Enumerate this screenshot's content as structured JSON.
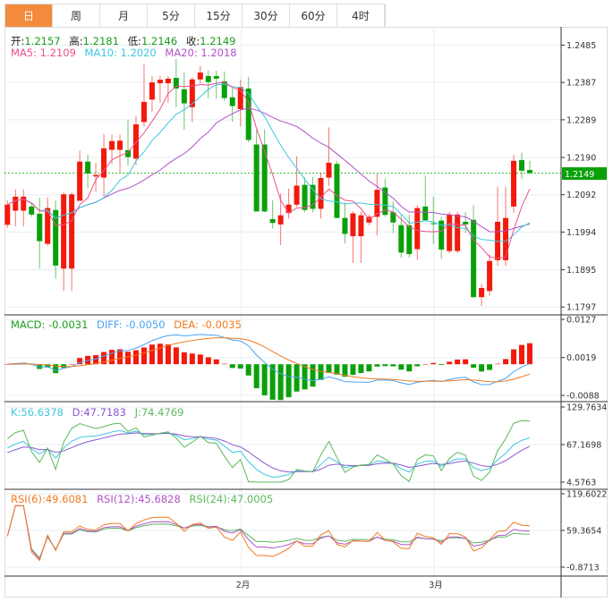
{
  "tabs": [
    "日",
    "周",
    "月",
    "5分",
    "15分",
    "30分",
    "60分",
    "4时"
  ],
  "active_tab": 0,
  "legend": {
    "ohlc": [
      {
        "label": "开:",
        "value": "1.2157"
      },
      {
        "label": "高:",
        "value": "1.2181"
      },
      {
        "label": "低:",
        "value": "1.2146"
      },
      {
        "label": "收:",
        "value": "1.2149"
      }
    ],
    "ma": [
      "MA5: 1.2109",
      "MA10: 1.2020",
      "MA20: 1.2018"
    ],
    "macd": [
      "MACD: -0.0031",
      "DIFF: -0.0050",
      "DEA: -0.0035"
    ],
    "kdj": [
      "K:56.6378",
      "D:47.7183",
      "J:74.4769"
    ],
    "rsi": [
      "RSI(6):49.6081",
      "RSI(12):45.6828",
      "RSI(24):47.0005"
    ]
  },
  "colors": {
    "up": "#f21a0c",
    "down": "#0aa00a",
    "ma5": "#ee4f8c",
    "ma10": "#3ec6e0",
    "ma20": "#b052c8",
    "accent": "#f28c3c",
    "diff": "#4aa3f0",
    "dea": "#f27a20",
    "k": "#3ec6e0",
    "d": "#8a5ad0",
    "j": "#5bb85b",
    "rsi6": "#f27a20",
    "rsi12": "#b052c8",
    "rsi24": "#5bb85b"
  },
  "current_price": "1.2149",
  "chart_data": {
    "type": "candlestick",
    "price_axis": {
      "ticks": [
        "1.2485",
        "1.2387",
        "1.2289",
        "1.2190",
        "1.2092",
        "1.1994",
        "1.1895",
        "1.1797"
      ],
      "range": [
        1.1797,
        1.2485
      ]
    },
    "macd_axis": {
      "ticks": [
        "0.0127",
        "0.0019",
        "-0.0088"
      ],
      "range": [
        -0.0088,
        0.0127
      ]
    },
    "kdj_axis": {
      "ticks": [
        "129.7634",
        "67.1698",
        "4.5763"
      ],
      "range": [
        4.5763,
        129.7634
      ]
    },
    "rsi_axis": {
      "ticks": [
        "119.6022",
        "59.3654",
        "-0.8713"
      ],
      "range": [
        -0.8713,
        119.6022
      ]
    },
    "x_labels": [
      {
        "index": 29,
        "label": "2月"
      },
      {
        "index": 53,
        "label": "3月"
      }
    ],
    "ohlc": [
      [
        1.2013,
        1.2077,
        1.2005,
        1.2066
      ],
      [
        1.205,
        1.2106,
        1.2009,
        1.2087
      ],
      [
        1.205,
        1.2106,
        1.2009,
        1.2087
      ],
      [
        1.2061,
        1.2072,
        1.2034,
        1.204
      ],
      [
        1.2042,
        1.2084,
        1.1898,
        1.197
      ],
      [
        1.1963,
        1.2084,
        1.1958,
        1.2057
      ],
      [
        1.2052,
        1.2077,
        1.1872,
        1.1906
      ],
      [
        1.1898,
        1.2099,
        1.1839,
        1.2093
      ],
      [
        1.1898,
        1.2099,
        1.1839,
        1.2093
      ],
      [
        1.2076,
        1.2208,
        1.2076,
        1.2179
      ],
      [
        1.2179,
        1.2197,
        1.2109,
        1.2148
      ],
      [
        1.214,
        1.2176,
        1.2099,
        1.2144
      ],
      [
        1.2137,
        1.2252,
        1.2087,
        1.2214
      ],
      [
        1.221,
        1.225,
        1.2173,
        1.2233
      ],
      [
        1.221,
        1.225,
        1.215,
        1.2234
      ],
      [
        1.2209,
        1.2289,
        1.2169,
        1.2191
      ],
      [
        1.2187,
        1.2299,
        1.2169,
        1.2277
      ],
      [
        1.2283,
        1.2436,
        1.2271,
        1.2336
      ],
      [
        1.2342,
        1.2404,
        1.231,
        1.2387
      ],
      [
        1.2385,
        1.2404,
        1.2334,
        1.2394
      ],
      [
        1.2385,
        1.2404,
        1.2334,
        1.2397
      ],
      [
        1.2399,
        1.2449,
        1.2322,
        1.2371
      ],
      [
        1.2369,
        1.2414,
        1.2263,
        1.2332
      ],
      [
        1.2322,
        1.24,
        1.2283,
        1.2395
      ],
      [
        1.2395,
        1.243,
        1.2385,
        1.2413
      ],
      [
        1.2404,
        1.2418,
        1.2346,
        1.2388
      ],
      [
        1.2404,
        1.2418,
        1.2344,
        1.2397
      ],
      [
        1.239,
        1.2416,
        1.2338,
        1.2346
      ],
      [
        1.2348,
        1.2371,
        1.2284,
        1.2325
      ],
      [
        1.2317,
        1.2394,
        1.2271,
        1.2375
      ],
      [
        1.2371,
        1.2402,
        1.223,
        1.2236
      ],
      [
        1.2224,
        1.2263,
        1.2048,
        1.2048
      ],
      [
        1.2224,
        1.2263,
        1.2046,
        1.2048
      ],
      [
        1.2028,
        1.2077,
        1.2003,
        1.2018
      ],
      [
        1.2014,
        1.2095,
        1.196,
        1.2038
      ],
      [
        1.2044,
        1.2108,
        1.203,
        1.2066
      ],
      [
        1.2066,
        1.2193,
        1.206,
        1.2116
      ],
      [
        1.2118,
        1.2138,
        1.2046,
        1.2052
      ],
      [
        1.2118,
        1.2138,
        1.2046,
        1.2055
      ],
      [
        1.2055,
        1.215,
        1.203,
        1.2136
      ],
      [
        1.2137,
        1.2269,
        1.2116,
        1.2176
      ],
      [
        1.2173,
        1.2181,
        1.203,
        1.2031
      ],
      [
        1.2031,
        1.2072,
        1.1964,
        1.1989
      ],
      [
        1.1983,
        1.2048,
        1.1913,
        1.2043
      ],
      [
        1.1983,
        1.2048,
        1.1913,
        1.2038
      ],
      [
        1.2019,
        1.204,
        1.2012,
        1.2034
      ],
      [
        1.2034,
        1.2147,
        1.1985,
        1.2105
      ],
      [
        1.2111,
        1.2134,
        1.2034,
        1.2039
      ],
      [
        1.2046,
        1.2074,
        1.1991,
        1.2019
      ],
      [
        1.2012,
        1.204,
        1.1926,
        1.194
      ],
      [
        1.2012,
        1.204,
        1.1926,
        1.1936
      ],
      [
        1.1949,
        1.2064,
        1.1921,
        1.2057
      ],
      [
        1.2061,
        1.2142,
        1.2022,
        1.2025
      ],
      [
        1.2017,
        1.2087,
        1.1963,
        1.2015
      ],
      [
        1.2024,
        1.2034,
        1.1923,
        1.1948
      ],
      [
        1.1944,
        1.2047,
        1.1938,
        1.204
      ],
      [
        1.1944,
        1.2047,
        1.1938,
        1.204
      ],
      [
        1.2021,
        1.2047,
        1.1992,
        1.2014
      ],
      [
        1.2026,
        1.2064,
        1.1821,
        1.1823
      ],
      [
        1.1823,
        1.1858,
        1.18,
        1.1847
      ],
      [
        1.1839,
        1.1936,
        1.1827,
        1.1918
      ],
      [
        1.192,
        1.2113,
        1.1905,
        1.2021
      ],
      [
        1.192,
        1.2113,
        1.1905,
        1.2031
      ],
      [
        1.2061,
        1.2197,
        1.2044,
        1.2181
      ],
      [
        1.2183,
        1.2202,
        1.2134,
        1.2155
      ],
      [
        1.2157,
        1.2181,
        1.2146,
        1.2149
      ]
    ]
  }
}
